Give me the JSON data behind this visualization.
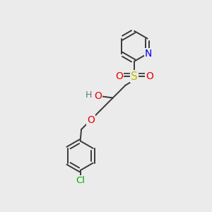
{
  "background_color": "#ebebeb",
  "bond_color": "#3a3a3a",
  "atom_colors": {
    "N": "#0000ee",
    "O": "#ee0000",
    "S": "#bbbb00",
    "Cl": "#00aa00",
    "H": "#607878",
    "C": "#3a3a3a"
  },
  "figsize": [
    3.0,
    3.0
  ],
  "dpi": 100
}
